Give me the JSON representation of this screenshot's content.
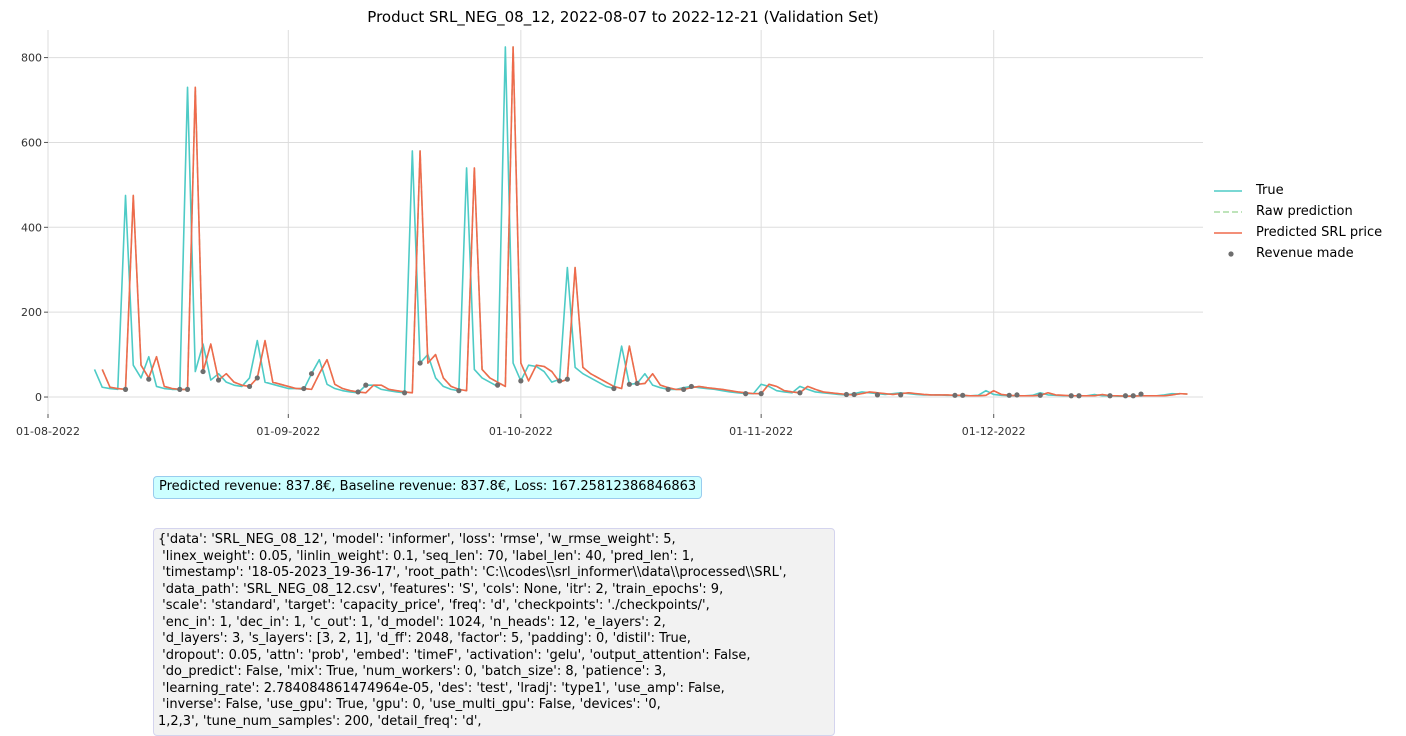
{
  "chart_data": {
    "type": "line",
    "title": "Product SRL_NEG_08_12, 2022-08-07 to 2022-12-21 (Validation Set)",
    "xlabel": "",
    "ylabel": "",
    "x_range_days_since_2022_08_01": [
      0,
      149
    ],
    "ylim": [
      -40,
      865
    ],
    "y_ticks": [
      0,
      200,
      400,
      600,
      800
    ],
    "x_ticks": [
      {
        "day": 0,
        "label": "01-08-2022"
      },
      {
        "day": 31,
        "label": "01-09-2022"
      },
      {
        "day": 61,
        "label": "01-10-2022"
      },
      {
        "day": 92,
        "label": "01-11-2022"
      },
      {
        "day": 122,
        "label": "01-12-2022"
      }
    ],
    "grid": true,
    "legend_placement": "center-right",
    "series": [
      {
        "name": "True",
        "color": "#4ecbc6",
        "style": "solid",
        "start_day": 6,
        "values": [
          65,
          23,
          20,
          18,
          475,
          75,
          45,
          95,
          25,
          20,
          18,
          18,
          730,
          60,
          125,
          40,
          55,
          35,
          28,
          25,
          45,
          133,
          35,
          30,
          25,
          20,
          20,
          18,
          55,
          88,
          30,
          20,
          15,
          12,
          10,
          28,
          28,
          18,
          15,
          12,
          10,
          580,
          80,
          100,
          45,
          25,
          18,
          15,
          540,
          65,
          45,
          35,
          25,
          825,
          80,
          38,
          75,
          72,
          60,
          35,
          42,
          305,
          70,
          55,
          45,
          35,
          25,
          20,
          120,
          30,
          32,
          55,
          28,
          22,
          18,
          18,
          22,
          25,
          22,
          20,
          18,
          15,
          12,
          10,
          8,
          8,
          30,
          25,
          15,
          12,
          10,
          25,
          18,
          12,
          10,
          8,
          6,
          5,
          8,
          12,
          10,
          8,
          6,
          8,
          10,
          8,
          6,
          5,
          5,
          5,
          4,
          4,
          3,
          3,
          4,
          15,
          6,
          4,
          3,
          3,
          3,
          4,
          10,
          5,
          4,
          3,
          3,
          3,
          3,
          6,
          3,
          3,
          2,
          2,
          3,
          3,
          3,
          3,
          5,
          8,
          7
        ]
      },
      {
        "name": "Raw prediction",
        "color": "#a8dba3",
        "style": "dashed",
        "start_day": 7,
        "values": [
          65,
          23,
          20,
          18,
          475,
          75,
          45,
          95,
          25,
          20,
          18,
          18,
          730,
          60,
          125,
          40,
          55,
          35,
          28,
          25,
          45,
          133,
          35,
          30,
          25,
          20,
          20,
          18,
          55,
          88,
          30,
          20,
          15,
          12,
          10,
          28,
          28,
          18,
          15,
          12,
          10,
          580,
          80,
          100,
          45,
          25,
          18,
          15,
          540,
          65,
          45,
          35,
          25,
          825,
          80,
          38,
          75,
          72,
          60,
          35,
          42,
          305,
          70,
          55,
          45,
          35,
          25,
          20,
          120,
          30,
          32,
          55,
          28,
          22,
          18,
          18,
          22,
          25,
          22,
          20,
          18,
          15,
          12,
          10,
          8,
          8,
          30,
          25,
          15,
          12,
          10,
          25,
          18,
          12,
          10,
          8,
          6,
          5,
          8,
          12,
          10,
          8,
          6,
          8,
          10,
          8,
          6,
          5,
          5,
          5,
          4,
          4,
          3,
          3,
          4,
          15,
          6,
          4,
          3,
          3,
          3,
          4,
          10,
          5,
          4,
          3,
          3,
          3,
          3,
          6,
          3,
          3,
          2,
          2,
          3,
          3,
          3,
          3,
          5,
          8,
          7
        ]
      },
      {
        "name": "Predicted SRL price",
        "color": "#ef6a4c",
        "style": "solid",
        "start_day": 7,
        "values": [
          65,
          23,
          20,
          18,
          475,
          75,
          45,
          95,
          25,
          20,
          18,
          18,
          730,
          60,
          125,
          40,
          55,
          35,
          28,
          25,
          45,
          133,
          35,
          30,
          25,
          20,
          20,
          18,
          55,
          88,
          30,
          20,
          15,
          12,
          10,
          28,
          28,
          18,
          15,
          12,
          10,
          580,
          80,
          100,
          45,
          25,
          18,
          15,
          540,
          65,
          45,
          35,
          25,
          825,
          80,
          38,
          75,
          72,
          60,
          35,
          42,
          305,
          70,
          55,
          45,
          35,
          25,
          20,
          120,
          30,
          32,
          55,
          28,
          22,
          18,
          18,
          22,
          25,
          22,
          20,
          18,
          15,
          12,
          10,
          8,
          8,
          30,
          25,
          15,
          12,
          10,
          25,
          18,
          12,
          10,
          8,
          6,
          5,
          8,
          12,
          10,
          8,
          6,
          8,
          10,
          8,
          6,
          5,
          5,
          5,
          4,
          4,
          3,
          3,
          4,
          15,
          6,
          4,
          3,
          3,
          3,
          4,
          10,
          5,
          4,
          3,
          3,
          3,
          3,
          6,
          3,
          3,
          2,
          2,
          3,
          3,
          3,
          3,
          5,
          8,
          7
        ]
      },
      {
        "name": "Revenue made",
        "color": "#6e6e6e",
        "style": "markers",
        "points": [
          [
            10,
            18
          ],
          [
            13,
            42
          ],
          [
            17,
            18
          ],
          [
            18,
            18
          ],
          [
            20,
            60
          ],
          [
            22,
            40
          ],
          [
            26,
            25
          ],
          [
            27,
            45
          ],
          [
            33,
            20
          ],
          [
            34,
            55
          ],
          [
            40,
            12
          ],
          [
            41,
            28
          ],
          [
            46,
            10
          ],
          [
            48,
            80
          ],
          [
            53,
            15
          ],
          [
            58,
            28
          ],
          [
            61,
            38
          ],
          [
            66,
            38
          ],
          [
            67,
            42
          ],
          [
            73,
            20
          ],
          [
            75,
            30
          ],
          [
            76,
            32
          ],
          [
            80,
            18
          ],
          [
            82,
            18
          ],
          [
            83,
            25
          ],
          [
            90,
            8
          ],
          [
            92,
            8
          ],
          [
            97,
            10
          ],
          [
            103,
            6
          ],
          [
            104,
            6
          ],
          [
            107,
            5
          ],
          [
            110,
            5
          ],
          [
            117,
            4
          ],
          [
            118,
            4
          ],
          [
            124,
            4
          ],
          [
            125,
            5
          ],
          [
            128,
            4
          ],
          [
            132,
            3
          ],
          [
            133,
            3
          ],
          [
            137,
            3
          ],
          [
            139,
            3
          ],
          [
            140,
            3
          ],
          [
            141,
            7
          ]
        ]
      }
    ]
  },
  "annotations": {
    "revenue_text": "Predicted revenue: 837.8€, Baseline revenue: 837.8€, Loss: 167.25812386846863",
    "params_text": "{'data': 'SRL_NEG_08_12', 'model': 'informer', 'loss': 'rmse', 'w_rmse_weight': 5,\n 'linex_weight': 0.05, 'linlin_weight': 0.1, 'seq_len': 70, 'label_len': 40, 'pred_len': 1,\n 'timestamp': '18-05-2023_19-36-17', 'root_path': 'C:\\\\codes\\\\srl_informer\\\\data\\\\processed\\\\SRL',\n 'data_path': 'SRL_NEG_08_12.csv', 'features': 'S', 'cols': None, 'itr': 2, 'train_epochs': 9,\n 'scale': 'standard', 'target': 'capacity_price', 'freq': 'd', 'checkpoints': './checkpoints/',\n 'enc_in': 1, 'dec_in': 1, 'c_out': 1, 'd_model': 1024, 'n_heads': 12, 'e_layers': 2,\n 'd_layers': 3, 's_layers': [3, 2, 1], 'd_ff': 2048, 'factor': 5, 'padding': 0, 'distil': True,\n 'dropout': 0.05, 'attn': 'prob', 'embed': 'timeF', 'activation': 'gelu', 'output_attention': False,\n 'do_predict': False, 'mix': True, 'num_workers': 0, 'batch_size': 8, 'patience': 3,\n 'learning_rate': 2.784084861474964e-05, 'des': 'test', 'lradj': 'type1', 'use_amp': False,\n 'inverse': False, 'use_gpu': True, 'gpu': 0, 'use_multi_gpu': False, 'devices': '0,\n1,2,3', 'tune_num_samples': 200, 'detail_freq': 'd',"
  }
}
